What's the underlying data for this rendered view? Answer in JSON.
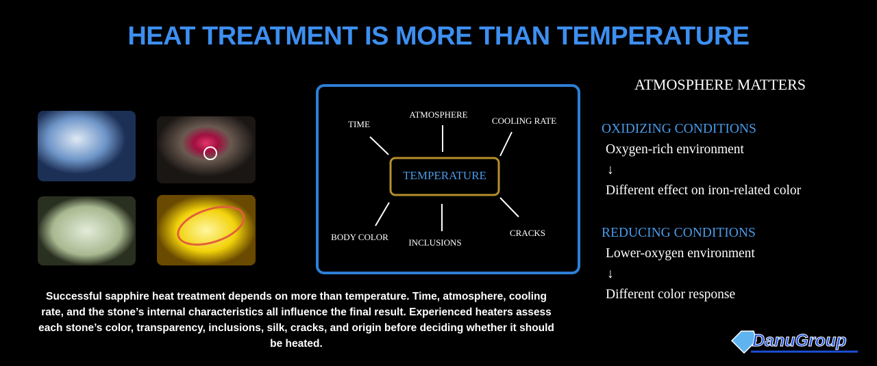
{
  "header": {
    "title": "HEAT TREATMENT IS MORE THAN TEMPERATURE"
  },
  "diagram": {
    "center": "TEMPERATURE",
    "factors": [
      "TIME",
      "ATMOSPHERE",
      "COOLING RATE",
      "BODY COLOR",
      "INCLUSIONS",
      "CRACKS"
    ]
  },
  "description": "Successful sapphire heat treatment depends on more than temperature. Time, atmosphere, cooling rate, and the stone’s internal characteristics all influence the final result. Experienced heaters assess each stone’s color, transparency, inclusions, silk, cracks, and origin before deciding whether it should be heated.",
  "sidebar": {
    "title": "ATMOSPHERE MATTERS",
    "sections": [
      {
        "heading": "OXIDIZING CONDITIONS",
        "condition": "Oxygen-rich environment",
        "arrow": "↓",
        "effect": "Different effect on iron-related color"
      },
      {
        "heading": "REDUCING CONDITIONS",
        "condition": "Lower-oxygen environment",
        "arrow": "↓",
        "effect": "Different color response"
      }
    ]
  },
  "logo": {
    "name": "DanuGroup"
  }
}
